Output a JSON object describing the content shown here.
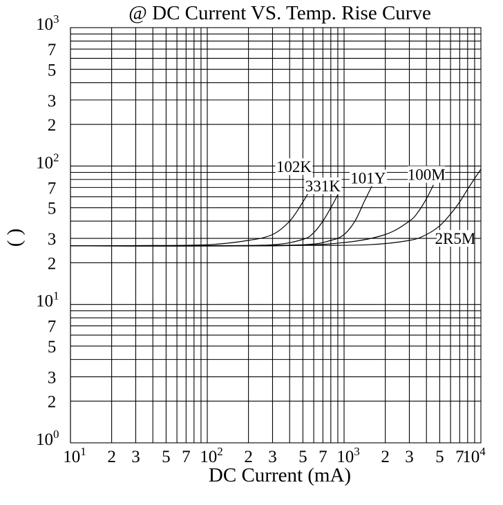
{
  "chart_data": {
    "type": "line",
    "title": "@ DC Current VS. Temp. Rise Curve",
    "xlabel": "DC Current (mA)",
    "ylabel": "(   )",
    "x_scale": "log",
    "y_scale": "log",
    "xlim": [
      10,
      10000
    ],
    "ylim": [
      1,
      1000
    ],
    "grid": true,
    "x_ticks": [
      {
        "value": 10,
        "base": "10",
        "exp": "1"
      },
      {
        "value": 20,
        "label": "2"
      },
      {
        "value": 30,
        "label": "3"
      },
      {
        "value": 50,
        "label": "5"
      },
      {
        "value": 70,
        "label": "7"
      },
      {
        "value": 100,
        "base": "10",
        "exp": "2"
      },
      {
        "value": 200,
        "label": "2"
      },
      {
        "value": 300,
        "label": "3"
      },
      {
        "value": 500,
        "label": "5"
      },
      {
        "value": 700,
        "label": "7"
      },
      {
        "value": 1000,
        "base": "10",
        "exp": "3"
      },
      {
        "value": 2000,
        "label": "2"
      },
      {
        "value": 3000,
        "label": "3"
      },
      {
        "value": 5000,
        "label": "5"
      },
      {
        "value": 7000,
        "label": "7"
      },
      {
        "value": 10000,
        "base": "10",
        "exp": "4"
      }
    ],
    "y_ticks": [
      {
        "value": 1,
        "base": "10",
        "exp": "0"
      },
      {
        "value": 2,
        "label": "2"
      },
      {
        "value": 3,
        "label": "3"
      },
      {
        "value": 5,
        "label": "5"
      },
      {
        "value": 7,
        "label": "7"
      },
      {
        "value": 10,
        "base": "10",
        "exp": "1"
      },
      {
        "value": 20,
        "label": "2"
      },
      {
        "value": 30,
        "label": "3"
      },
      {
        "value": 50,
        "label": "5"
      },
      {
        "value": 70,
        "label": "7"
      },
      {
        "value": 100,
        "base": "10",
        "exp": "2"
      },
      {
        "value": 200,
        "label": "2"
      },
      {
        "value": 300,
        "label": "3"
      },
      {
        "value": 500,
        "label": "5"
      },
      {
        "value": 700,
        "label": "7"
      },
      {
        "value": 1000,
        "base": "10",
        "exp": "3"
      }
    ],
    "series": [
      {
        "name": "102K",
        "label_x": 430,
        "label_y": 99,
        "points": [
          [
            10,
            26.5
          ],
          [
            30,
            26.6
          ],
          [
            100,
            27
          ],
          [
            200,
            29
          ],
          [
            300,
            32
          ],
          [
            400,
            40
          ],
          [
            500,
            55
          ],
          [
            600,
            75
          ]
        ]
      },
      {
        "name": "331K",
        "label_x": 700,
        "label_y": 72,
        "points": [
          [
            10,
            26.5
          ],
          [
            100,
            26.5
          ],
          [
            300,
            27
          ],
          [
            500,
            29.5
          ],
          [
            600,
            33
          ],
          [
            700,
            40
          ],
          [
            800,
            50
          ],
          [
            900,
            62
          ]
        ]
      },
      {
        "name": "101Y",
        "label_x": 1500,
        "label_y": 82,
        "points": [
          [
            10,
            26.5
          ],
          [
            100,
            26.5
          ],
          [
            500,
            27
          ],
          [
            800,
            29
          ],
          [
            1000,
            32
          ],
          [
            1200,
            40
          ],
          [
            1400,
            55
          ],
          [
            1600,
            72
          ]
        ]
      },
      {
        "name": "100M",
        "label_x": 4000,
        "label_y": 87,
        "points": [
          [
            10,
            26.5
          ],
          [
            300,
            26.5
          ],
          [
            1000,
            28
          ],
          [
            2000,
            32
          ],
          [
            3000,
            40
          ],
          [
            3500,
            47
          ],
          [
            4000,
            58
          ],
          [
            4500,
            73
          ]
        ]
      },
      {
        "name": "2R5M",
        "label_x": 6500,
        "label_y": 30,
        "points": [
          [
            10,
            26.5
          ],
          [
            500,
            26.7
          ],
          [
            1500,
            27
          ],
          [
            3000,
            29
          ],
          [
            4000,
            32
          ],
          [
            5000,
            37
          ],
          [
            6000,
            45
          ],
          [
            7000,
            55
          ],
          [
            8000,
            68
          ],
          [
            10000,
            95
          ]
        ]
      }
    ]
  }
}
